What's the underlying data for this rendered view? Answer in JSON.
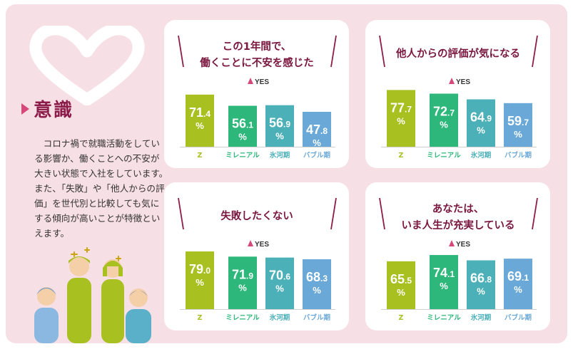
{
  "sidebar": {
    "title": "意識",
    "description": "コロナ禍で就職活動をしている影響か、働くことへの不安が大きい状態で入社をしています。また、「失敗」や「他人からの評価」を世代別と比較しても気にする傾向が高いことが特徴といえます。"
  },
  "colors": {
    "background": "#f7dfe6",
    "title": "#8c1c4a",
    "accent": "#d6477a",
    "Z": "#a8c020",
    "ミレニアル": "#2db77a",
    "氷河期": "#4cb0b8",
    "バブル期": "#6aa8d8"
  },
  "chart_data": [
    {
      "type": "bar",
      "title": [
        "この1年間で、",
        "働くことに不安を感じた"
      ],
      "legend": "YES",
      "unit": "%",
      "categories": [
        "Z",
        "ミレニアル",
        "氷河期",
        "バブル期"
      ],
      "values": [
        71.4,
        56.1,
        56.9,
        47.8
      ]
    },
    {
      "type": "bar",
      "title": [
        "他人からの評価が気になる"
      ],
      "legend": "YES",
      "unit": "%",
      "categories": [
        "Z",
        "ミレニアル",
        "氷河期",
        "バブル期"
      ],
      "values": [
        77.7,
        72.7,
        64.9,
        59.7
      ]
    },
    {
      "type": "bar",
      "title": [
        "失敗したくない"
      ],
      "legend": "YES",
      "unit": "%",
      "categories": [
        "Z",
        "ミレニアル",
        "氷河期",
        "バブル期"
      ],
      "values": [
        79.0,
        71.9,
        70.6,
        68.3
      ]
    },
    {
      "type": "bar",
      "title": [
        "あなたは、",
        "いま人生が充実している"
      ],
      "legend": "YES",
      "unit": "%",
      "categories": [
        "Z",
        "ミレニアル",
        "氷河期",
        "バブル期"
      ],
      "values": [
        65.5,
        74.1,
        66.8,
        69.1
      ]
    }
  ]
}
